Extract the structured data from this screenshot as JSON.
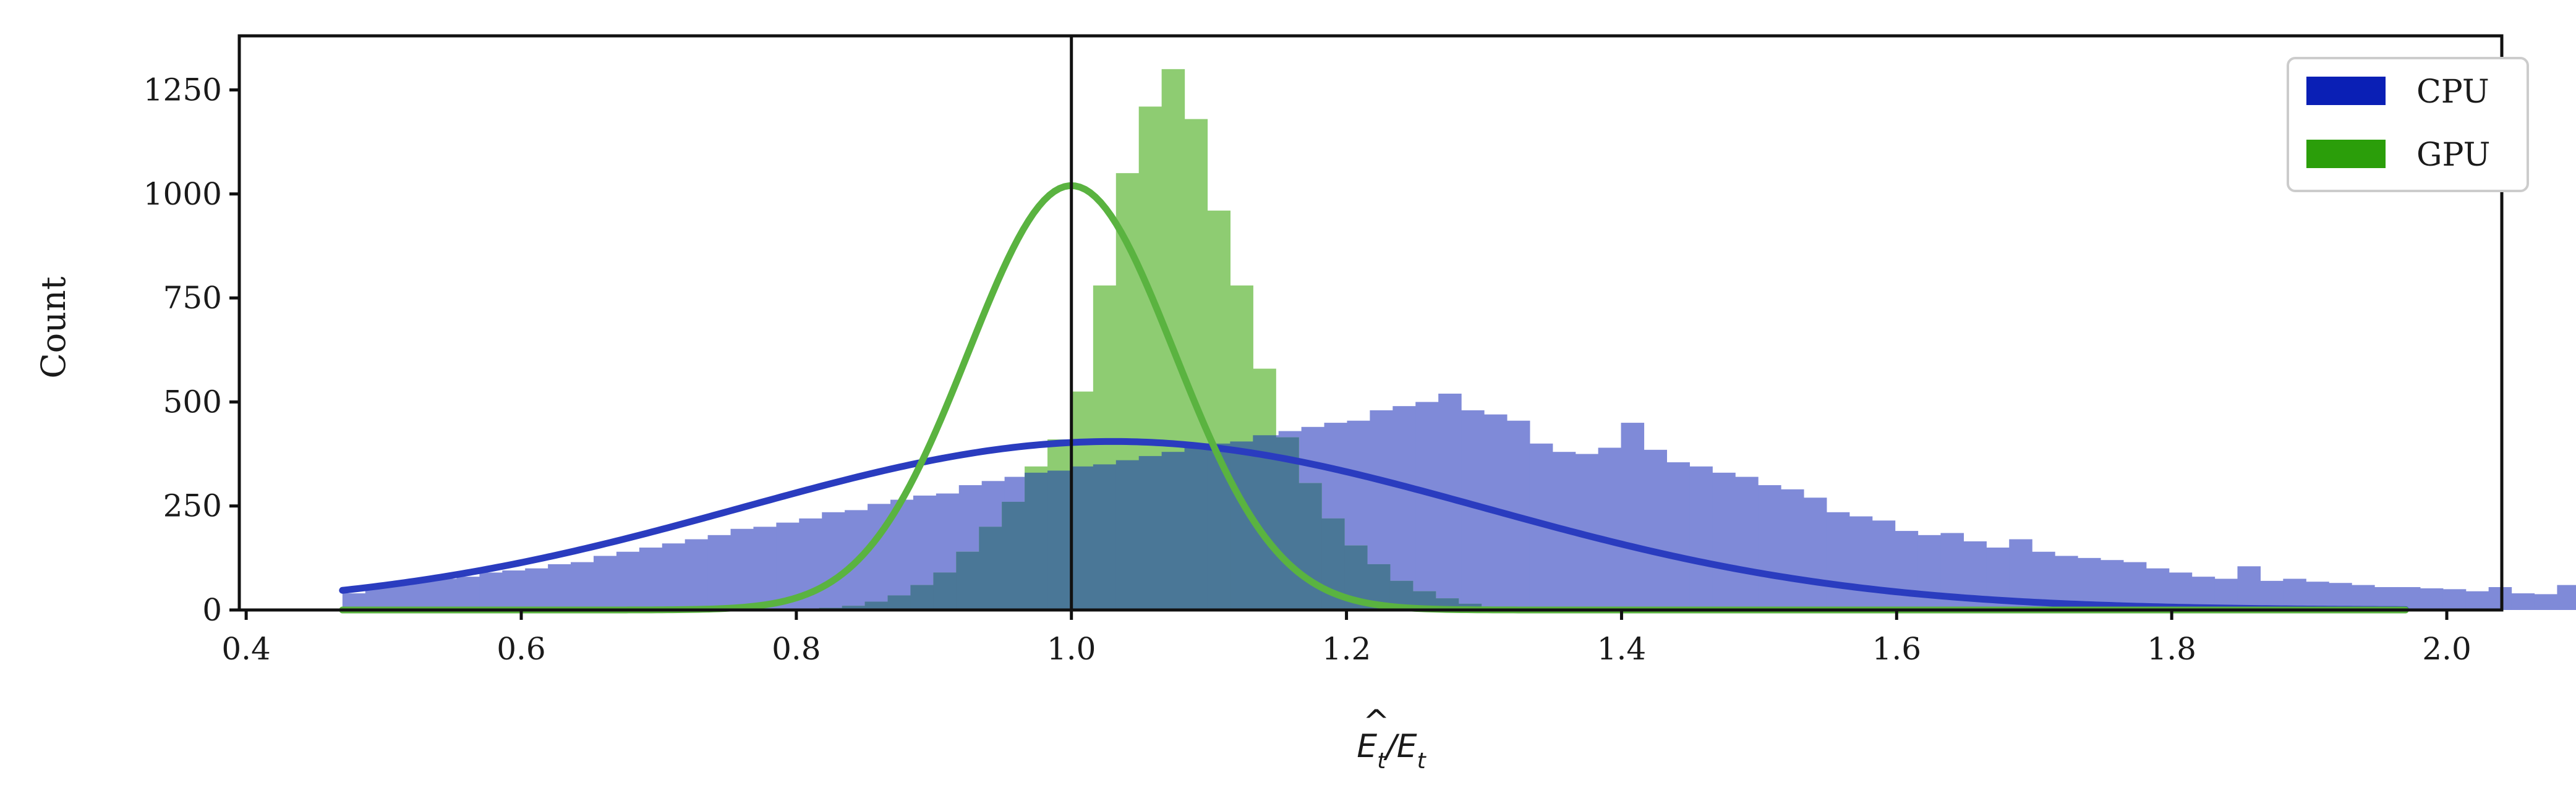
{
  "chart_data": {
    "type": "histogram",
    "title": "",
    "xlabel": "Ê_t/E_t",
    "ylabel": "Count",
    "xlim": [
      0.395,
      2.04
    ],
    "ylim": [
      0,
      1380
    ],
    "xticks": [
      0.4,
      0.6,
      0.8,
      1.0,
      1.2,
      1.4,
      1.6,
      1.8,
      2.0
    ],
    "xtick_labels": [
      "0.4",
      "0.6",
      "0.8",
      "1.0",
      "1.2",
      "1.4",
      "1.6",
      "1.8",
      "2.0"
    ],
    "yticks": [
      0,
      250,
      500,
      750,
      1000,
      1250
    ],
    "ytick_labels": [
      "0",
      "250",
      "500",
      "750",
      "1000",
      "1250"
    ],
    "reference_line_x": 1.0,
    "legend": {
      "position": "top-right",
      "entries": [
        "CPU",
        "GPU"
      ]
    },
    "series": [
      {
        "name": "CPU",
        "color": "#0a1fb5",
        "bar_color": "#7f8ad8",
        "fit_color": "#2a3cbf",
        "bin_start": 0.47,
        "bin_width": 0.0166,
        "counts": [
          40,
          55,
          60,
          70,
          75,
          80,
          90,
          95,
          100,
          110,
          115,
          130,
          140,
          150,
          160,
          170,
          180,
          195,
          200,
          210,
          220,
          235,
          240,
          255,
          265,
          275,
          280,
          300,
          310,
          320,
          330,
          335,
          345,
          350,
          360,
          370,
          380,
          390,
          400,
          405,
          420,
          430,
          440,
          450,
          455,
          480,
          490,
          500,
          520,
          480,
          470,
          455,
          400,
          380,
          375,
          390,
          450,
          385,
          355,
          345,
          330,
          320,
          300,
          290,
          270,
          235,
          225,
          215,
          190,
          180,
          185,
          165,
          150,
          170,
          140,
          130,
          125,
          120,
          115,
          100,
          90,
          80,
          75,
          105,
          70,
          75,
          68,
          65,
          60,
          55,
          55,
          52,
          50,
          45,
          55,
          40,
          38,
          60,
          35,
          30,
          28,
          30,
          25,
          25,
          22,
          20,
          18,
          18,
          16,
          15,
          14,
          13,
          12,
          11,
          10,
          10,
          9,
          9,
          8,
          8,
          7,
          7,
          6,
          6,
          5,
          5,
          5,
          4,
          4,
          3,
          3,
          3,
          2,
          2,
          2,
          2,
          2,
          1,
          1,
          1,
          1,
          1,
          1,
          1,
          1,
          1,
          1,
          1,
          1,
          1
        ],
        "fit": {
          "kind": "gaussian",
          "amplitude": 405,
          "mean": 1.03,
          "sigma": 0.27
        }
      },
      {
        "name": "GPU",
        "color": "#2b9e0a",
        "bar_color": "#8ecc72",
        "fit_color": "#5ab340",
        "bin_start": 0.8,
        "bin_width": 0.0166,
        "counts": [
          2,
          5,
          10,
          20,
          35,
          60,
          90,
          140,
          200,
          260,
          345,
          410,
          525,
          780,
          1050,
          1210,
          1300,
          1180,
          960,
          780,
          580,
          415,
          305,
          220,
          155,
          110,
          70,
          45,
          28,
          15,
          8,
          4,
          2
        ],
        "fit": {
          "kind": "gaussian",
          "amplitude": 1020,
          "mean": 1.0,
          "sigma": 0.075
        }
      }
    ]
  }
}
